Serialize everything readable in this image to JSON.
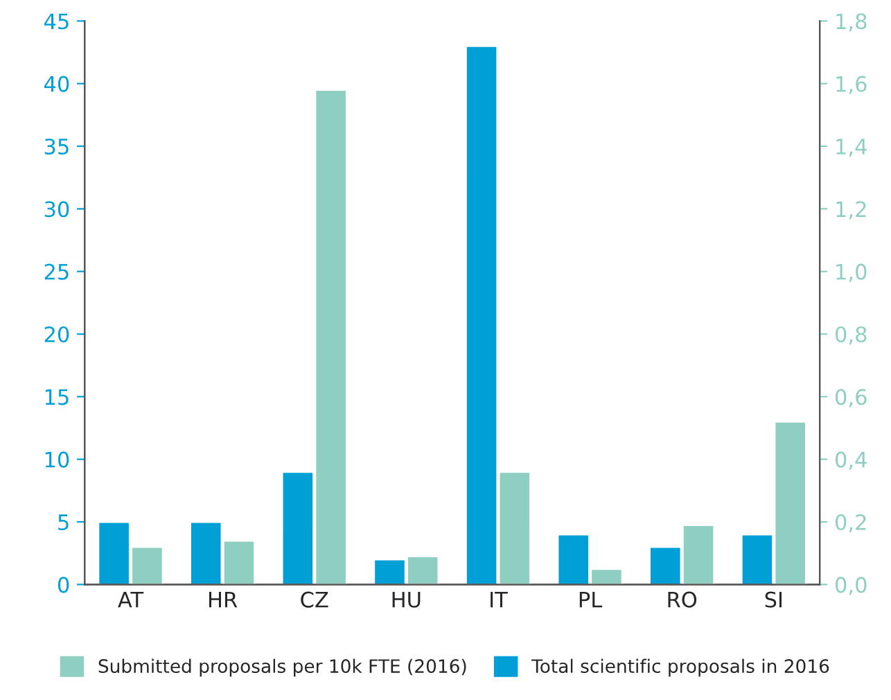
{
  "chart_data": {
    "type": "bar",
    "categories": [
      "AT",
      "HR",
      "CZ",
      "HU",
      "IT",
      "PL",
      "RO",
      "SI"
    ],
    "series": [
      {
        "name": "Total scientific proposals in 2016",
        "color": "#00a0d6",
        "values": [
          5,
          5,
          9,
          2,
          43,
          4,
          3,
          4
        ]
      },
      {
        "name": "Submitted proposals per 10k FTE (2016)",
        "color": "#8ecfc2",
        "axis": "y2",
        "values": [
          0.12,
          0.14,
          1.58,
          0.09,
          0.36,
          0.05,
          0.19,
          0.52
        ]
      }
    ],
    "ylim": [
      0,
      45
    ],
    "yticks": [
      0,
      5,
      10,
      15,
      20,
      25,
      30,
      35,
      40,
      45
    ],
    "y2lim": [
      0,
      1.8
    ],
    "y2ticks": [
      {
        "value": 0,
        "label": "0,0"
      },
      {
        "value": 0.2,
        "label": "0,2"
      },
      {
        "value": 0.4,
        "label": "0,4"
      },
      {
        "value": 0.6,
        "label": "0,6"
      },
      {
        "value": 0.8,
        "label": "0,8"
      },
      {
        "value": 1.0,
        "label": "1,0"
      },
      {
        "value": 1.2,
        "label": "1,2"
      },
      {
        "value": 1.4,
        "label": "1,4"
      },
      {
        "value": 1.6,
        "label": "1,6"
      },
      {
        "value": 1.8,
        "label": "1,8"
      }
    ],
    "grid": false,
    "legend": "bottom"
  }
}
